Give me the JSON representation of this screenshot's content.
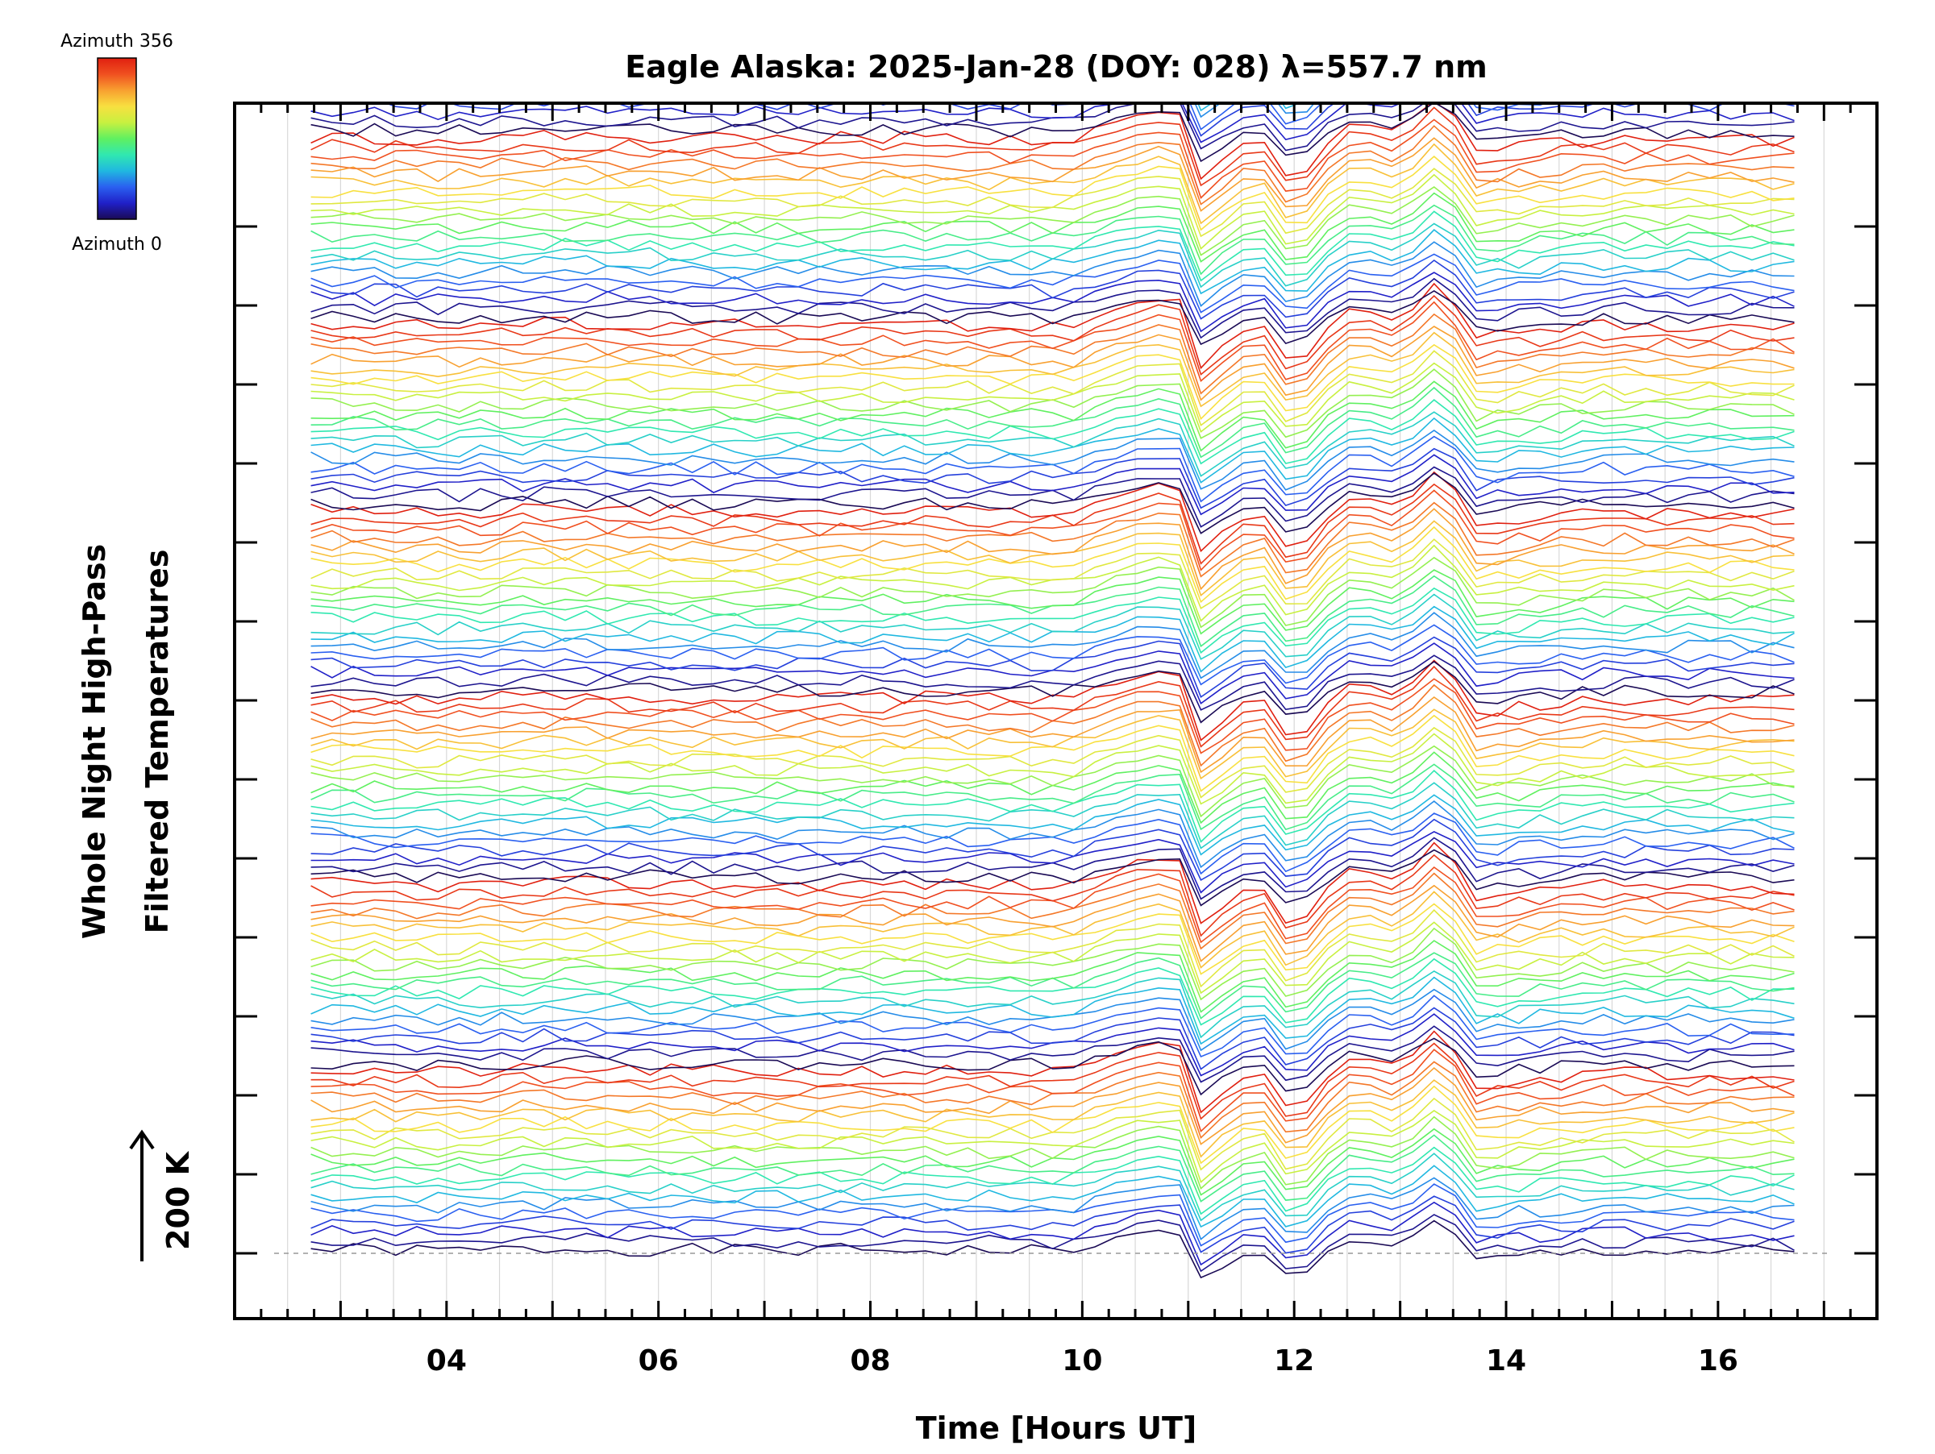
{
  "chart_data": {
    "type": "line",
    "title": "Eagle Alaska: 2025-Jan-28 (DOY: 028) λ=557.7 nm",
    "xlabel": "Time [Hours UT]",
    "ylabel_lines": [
      "Whole Night High-Pass",
      "Filtered Temperatures"
    ],
    "scale_bar_label": "200 K",
    "colorbar": {
      "top_label": "Azimuth 356",
      "bottom_label": "Azimuth 0",
      "colors": [
        "#1a0a55",
        "#2020c8",
        "#2a60f0",
        "#20b8e0",
        "#30e8b0",
        "#60f060",
        "#c8f040",
        "#f8e040",
        "#f8a030",
        "#f05020",
        "#e02010"
      ]
    },
    "xlim": [
      2.0,
      17.5
    ],
    "xticks": [
      {
        "value": 4,
        "label": "04"
      },
      {
        "value": 6,
        "label": "06"
      },
      {
        "value": 8,
        "label": "08"
      },
      {
        "value": 10,
        "label": "10"
      },
      {
        "value": 12,
        "label": "12"
      },
      {
        "value": 14,
        "label": "14"
      },
      {
        "value": 16,
        "label": "16"
      }
    ],
    "grid": true,
    "series_count": 150,
    "series_groups": 7,
    "series_per_group": 21,
    "time_start": 2.72,
    "time_end": 16.9,
    "time_step": 0.2,
    "reference_line_offset_K": 0,
    "offset_per_series_K": 14.7,
    "profile_hours": [
      2.7,
      3.5,
      4.0,
      5.0,
      6.0,
      7.0,
      8.0,
      9.0,
      9.9,
      10.2,
      10.6,
      10.8,
      10.95,
      11.05,
      11.15,
      11.4,
      11.7,
      11.85,
      12.0,
      12.2,
      12.5,
      12.65,
      12.85,
      13.05,
      13.25,
      13.35,
      13.55,
      13.7,
      14.0,
      14.5,
      15.0,
      15.5,
      16.0,
      16.5,
      16.9
    ],
    "profile_values_K": [
      8,
      6,
      4,
      9,
      7,
      5,
      7,
      6,
      4,
      22,
      40,
      44,
      36,
      -25,
      -62,
      -8,
      5,
      -20,
      -70,
      -15,
      24,
      30,
      12,
      18,
      55,
      62,
      30,
      -15,
      -8,
      0,
      5,
      3,
      4,
      3,
      0
    ]
  }
}
